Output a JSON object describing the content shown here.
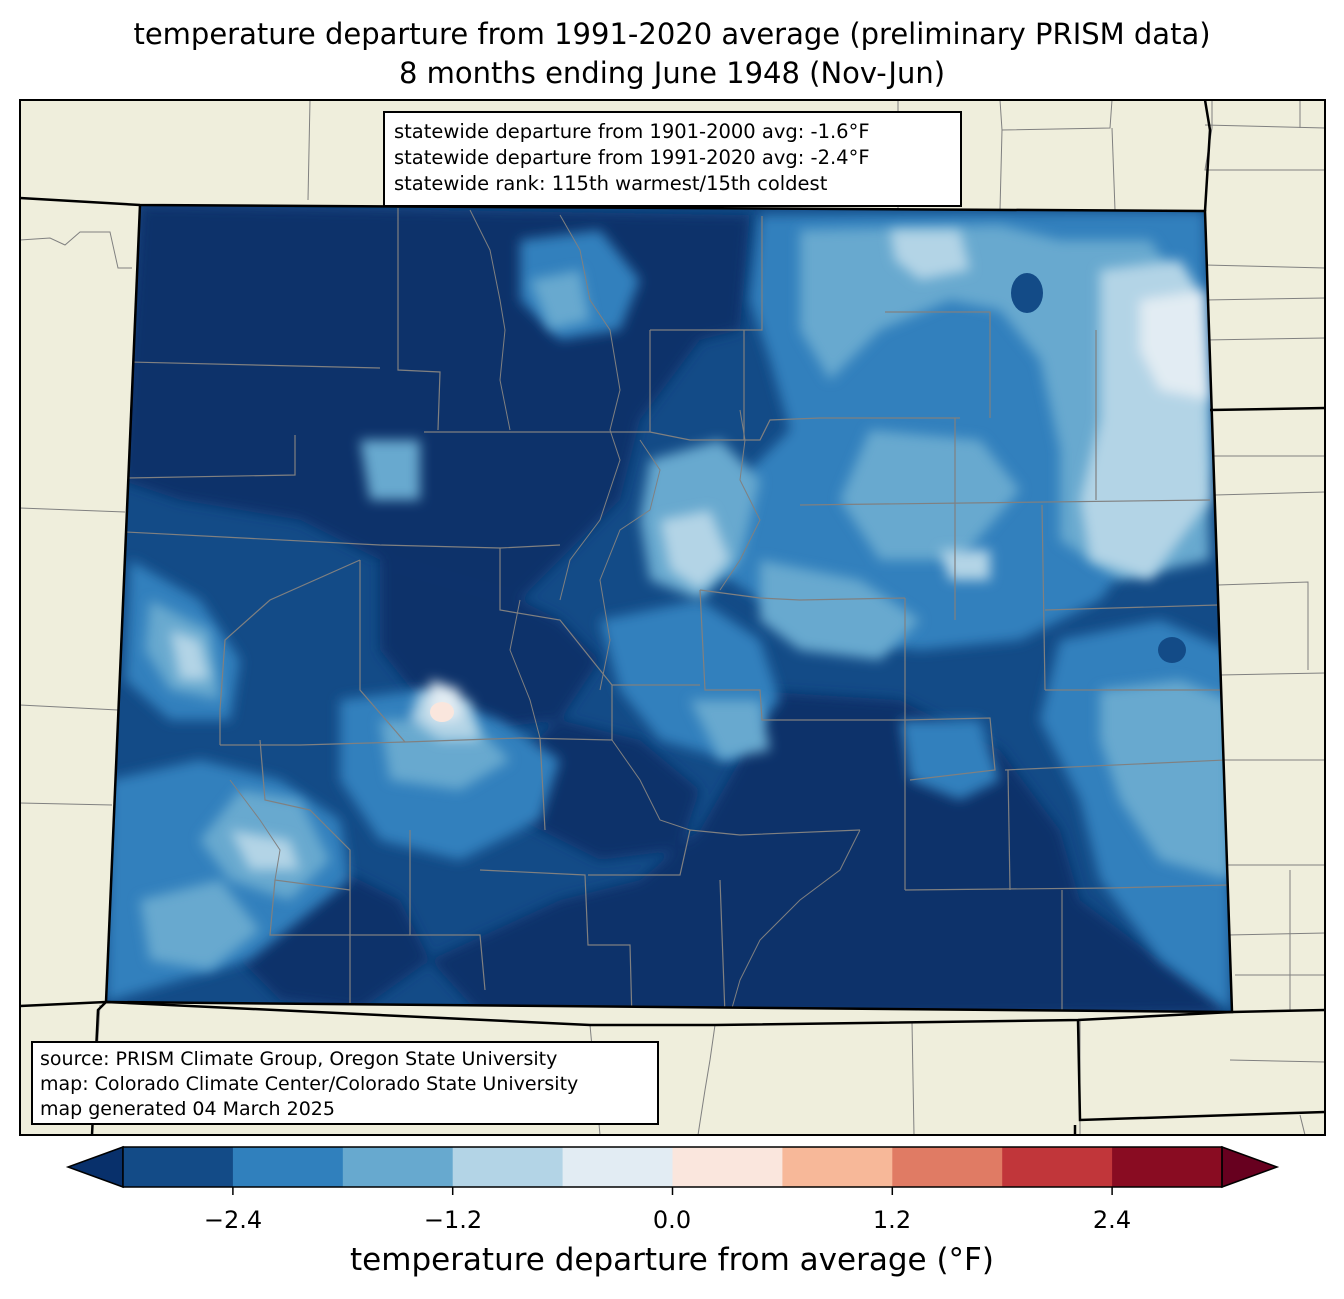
{
  "title": {
    "line1": "temperature departure from 1991-2020 average (preliminary PRISM data)",
    "line2": "8 months ending June 1948 (Nov-Jun)"
  },
  "stats": {
    "line1": "statewide departure from 1901-2000 avg: -1.6°F",
    "line2": "statewide departure from 1991-2020 avg: -2.4°F",
    "line3": "statewide rank: 115th warmest/15th coldest"
  },
  "source": {
    "line1": "source: PRISM Climate Group, Oregon State University",
    "line2": "map: Colorado Climate Center/Colorado State University",
    "line3": "map generated 04 March 2025"
  },
  "colorbar": {
    "label": "temperature departure from average (°F)",
    "ticks": [
      "−2.4",
      "−1.2",
      "0.0",
      "1.2",
      "2.4"
    ],
    "bins": [
      -3.0,
      -2.4,
      -1.8,
      -1.2,
      -0.6,
      0.0,
      0.6,
      1.2,
      1.8,
      2.4,
      3.0
    ],
    "colors": [
      "#08306b",
      "#134b87",
      "#3080bd",
      "#67a9cf",
      "#b3d4e6",
      "#e2ecf3",
      "#fae6dd",
      "#f7b899",
      "#e07b64",
      "#c1363a",
      "#890c22",
      "#67001f"
    ]
  },
  "map": {
    "background_color": "#efeedc",
    "border_color": "#000000",
    "county_line_color": "#808080"
  }
}
